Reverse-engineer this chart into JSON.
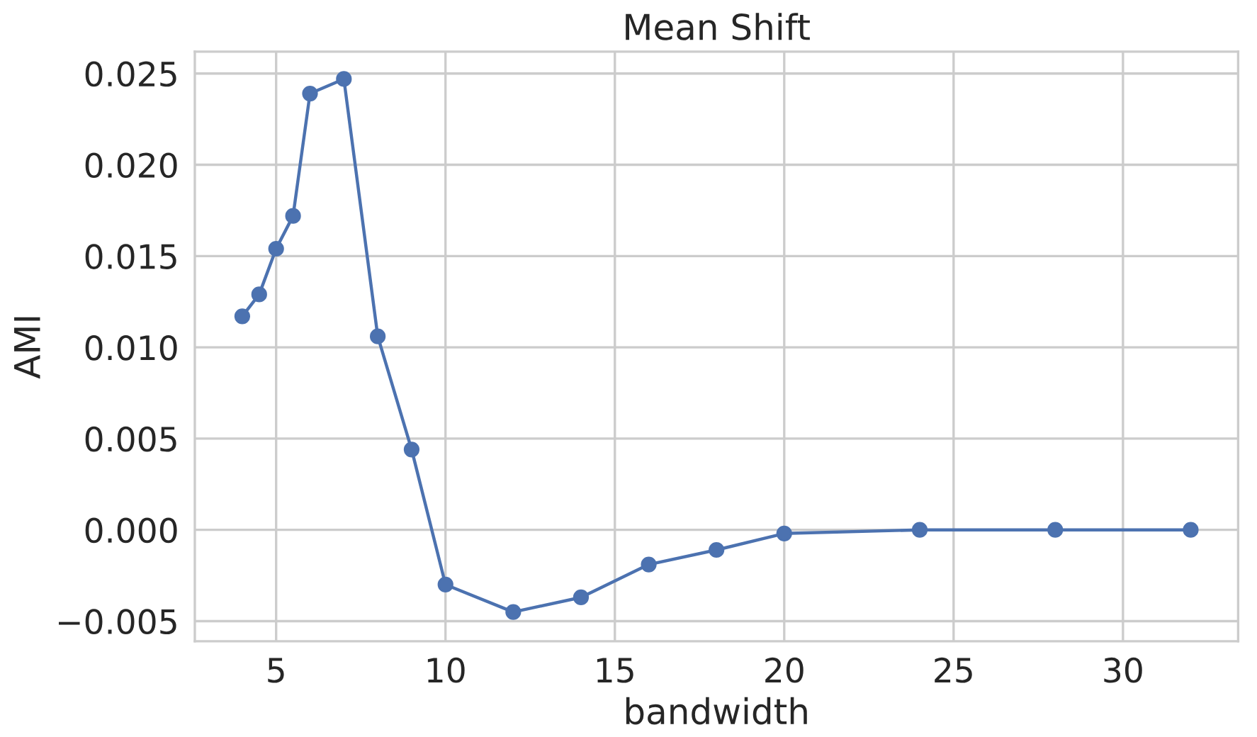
{
  "chart_data": {
    "type": "line",
    "title": "Mean Shift",
    "xlabel": "bandwidth",
    "ylabel": "AMI",
    "x": [
      4,
      4.5,
      5,
      5.5,
      6,
      7,
      8,
      9,
      10,
      12,
      14,
      16,
      18,
      20,
      24,
      28,
      32
    ],
    "series": [
      {
        "color": "#4c72b0",
        "values": [
          0.0117,
          0.0129,
          0.0154,
          0.0172,
          0.0239,
          0.0247,
          0.0106,
          0.0044,
          -0.003,
          -0.0045,
          -0.0037,
          -0.0019,
          -0.0011,
          -0.0002,
          0.0,
          0.0,
          0.0
        ]
      }
    ],
    "xlim": [
      2.6,
      33.4
    ],
    "xticks": [
      5,
      10,
      15,
      20,
      25,
      30
    ],
    "ylim": [
      -0.0061,
      0.0262
    ],
    "yticks": [
      {
        "value": -0.005,
        "label": "−0.005"
      },
      {
        "value": 0.0,
        "label": "0.000"
      },
      {
        "value": 0.005,
        "label": "0.005"
      },
      {
        "value": 0.01,
        "label": "0.010"
      },
      {
        "value": 0.015,
        "label": "0.015"
      },
      {
        "value": 0.02,
        "label": "0.020"
      },
      {
        "value": 0.025,
        "label": "0.025"
      }
    ],
    "grid": true,
    "marker": "circle",
    "line_style": "solid"
  }
}
